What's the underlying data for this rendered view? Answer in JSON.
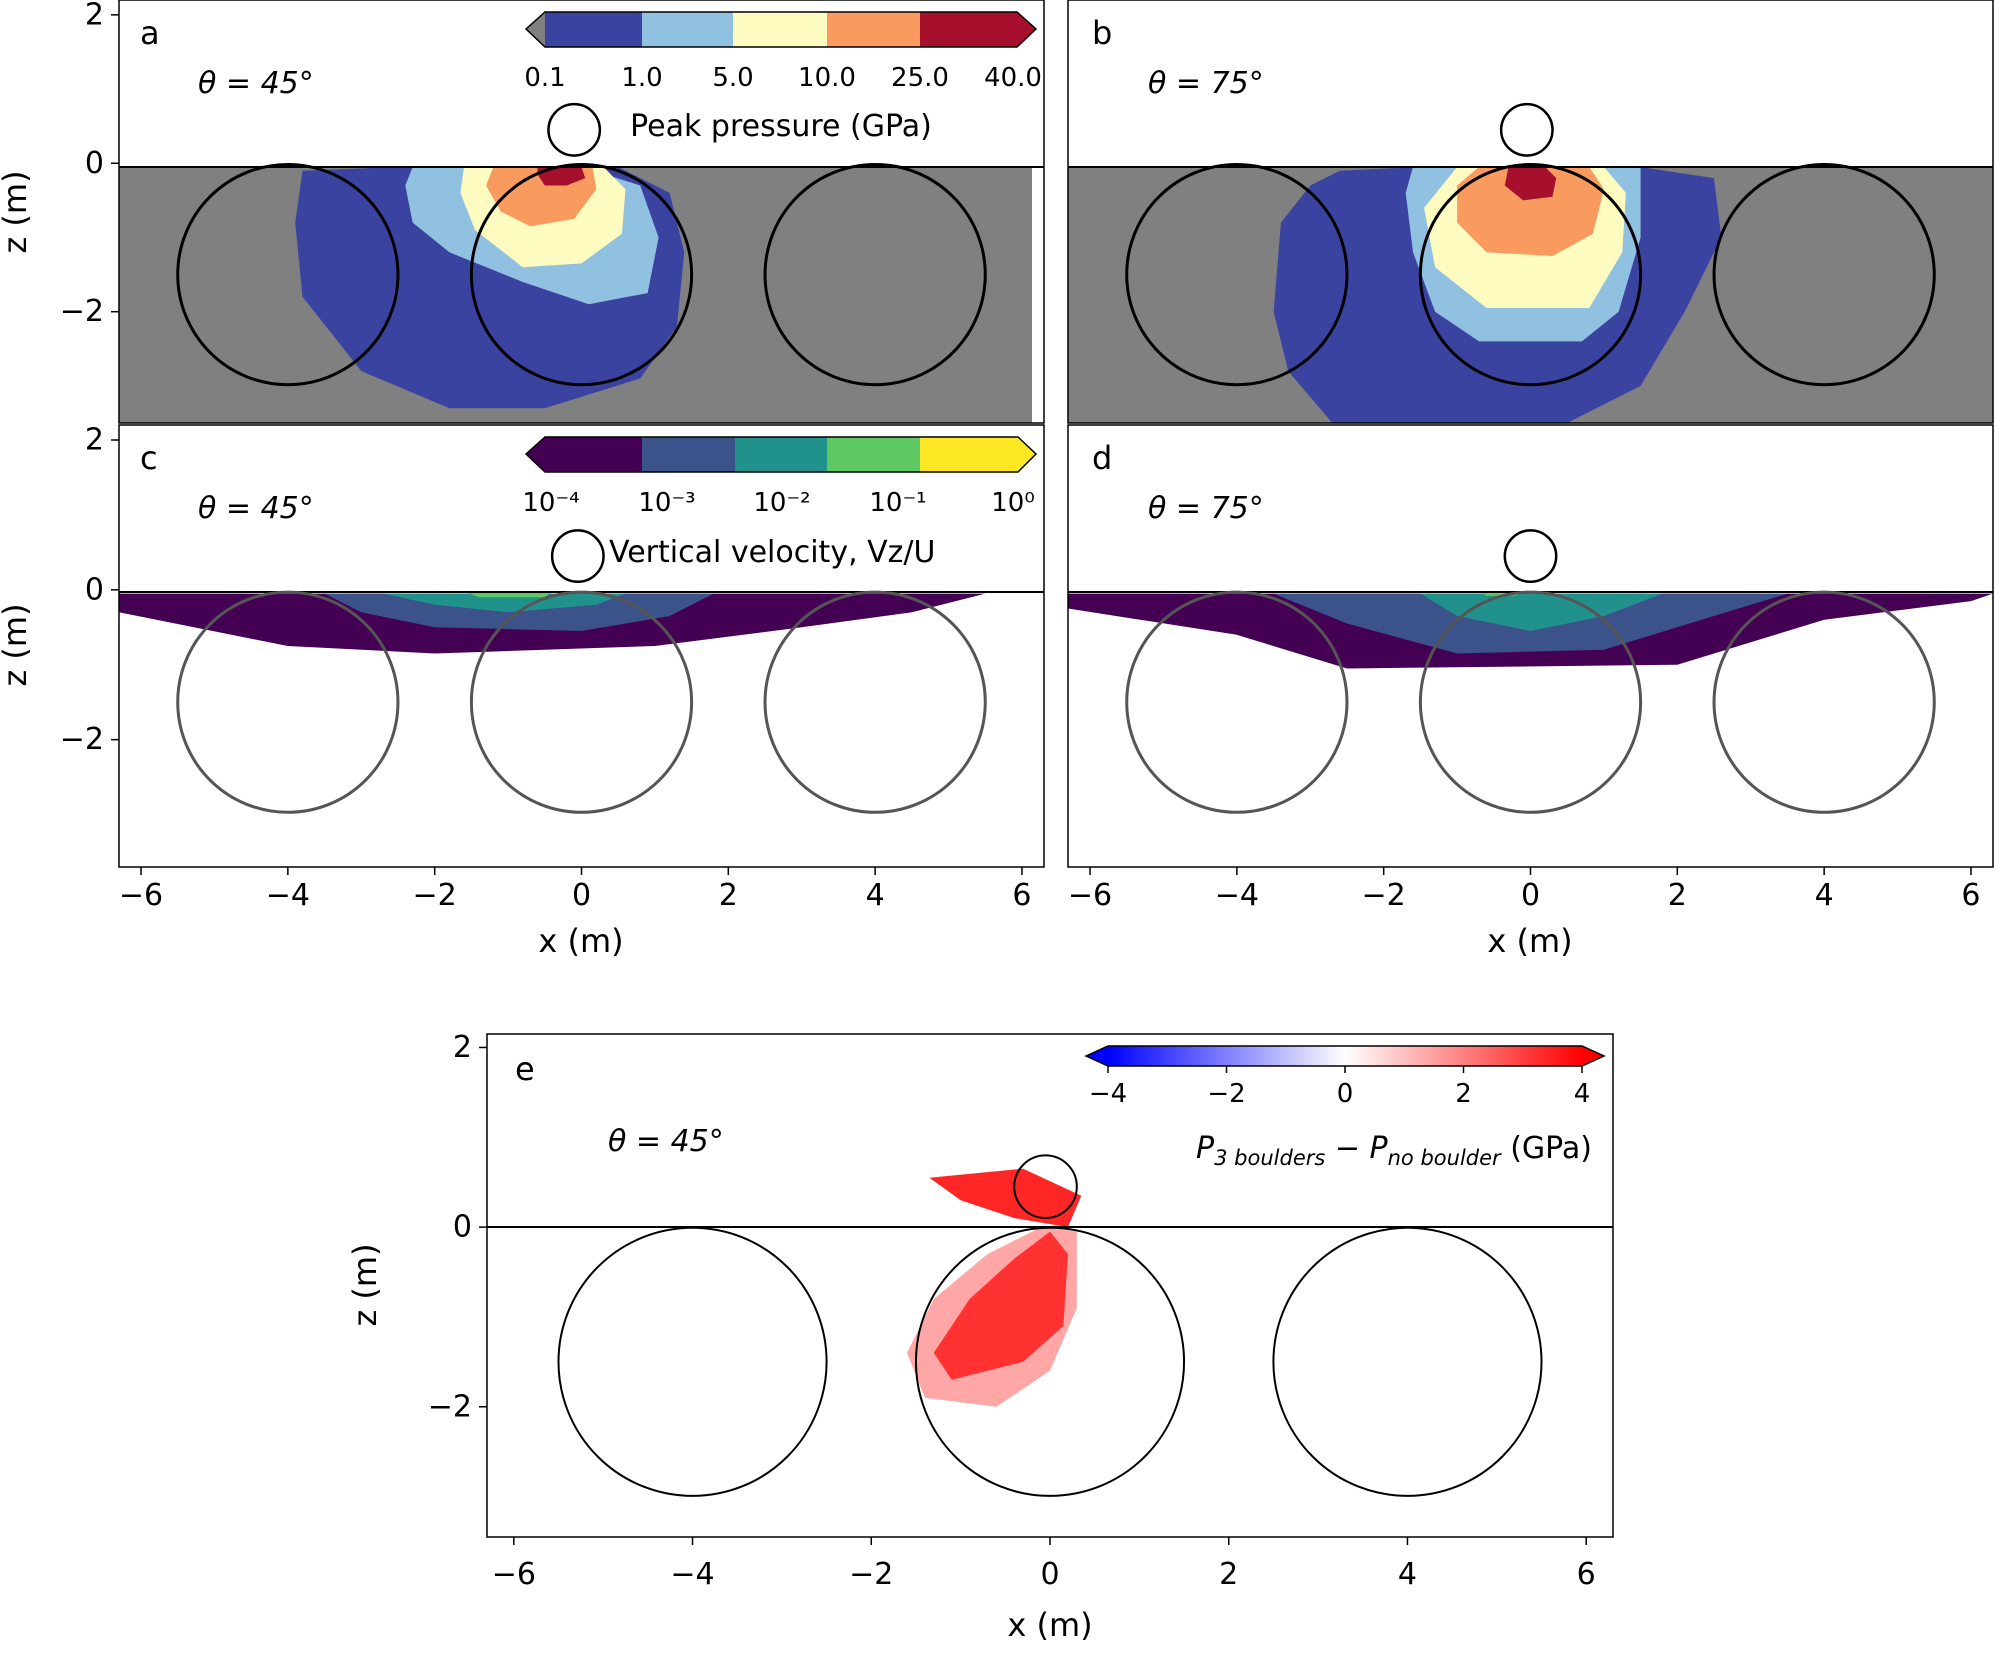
{
  "chart_data": [
    {
      "type": "heatmap",
      "panel_label": "a",
      "annotation": "θ = 45°",
      "xlabel": "",
      "ylabel": "z (m)",
      "xlim": [
        -6.3,
        6.3
      ],
      "ylim": [
        -3.5,
        2.2
      ],
      "xticks": [],
      "yticks": [
        "2",
        "0",
        "−2"
      ],
      "xtick_values": [],
      "ytick_values": [
        2,
        0,
        -2
      ],
      "impact_angle_deg": 45,
      "boulders": [
        {
          "x": -4,
          "z": -1.5,
          "r": 1.5
        },
        {
          "x": 0,
          "z": -1.5,
          "r": 1.5
        },
        {
          "x": 4,
          "z": -1.5,
          "r": 1.5
        }
      ],
      "projectile": {
        "x": -0.1,
        "z": 0.45,
        "r": 0.35
      },
      "background_color": "#808080",
      "contours": [
        {
          "level": "0.1",
          "points": [
            [
              -3.8,
              -0.1
            ],
            [
              -2.5,
              -0.05
            ],
            [
              -1,
              -0.05
            ],
            [
              0.5,
              -0.05
            ],
            [
              1.2,
              -0.4
            ],
            [
              1.4,
              -1.2
            ],
            [
              1.3,
              -2.2
            ],
            [
              0.8,
              -2.9
            ],
            [
              -0.5,
              -3.3
            ],
            [
              -1.8,
              -3.3
            ],
            [
              -3,
              -2.8
            ],
            [
              -3.8,
              -1.8
            ],
            [
              -3.9,
              -0.8
            ]
          ]
        },
        {
          "level": "1.0",
          "points": [
            [
              -2.3,
              -0.05
            ],
            [
              -1.2,
              -0.05
            ],
            [
              0,
              -0.05
            ],
            [
              0.8,
              -0.3
            ],
            [
              1.05,
              -1
            ],
            [
              0.9,
              -1.75
            ],
            [
              0.1,
              -1.9
            ],
            [
              -0.8,
              -1.6
            ],
            [
              -1.8,
              -1.2
            ],
            [
              -2.3,
              -0.8
            ],
            [
              -2.4,
              -0.3
            ]
          ]
        },
        {
          "level": "5.0",
          "points": [
            [
              -1.6,
              -0.05
            ],
            [
              -0.6,
              -0.05
            ],
            [
              0.3,
              -0.05
            ],
            [
              0.6,
              -0.35
            ],
            [
              0.55,
              -0.95
            ],
            [
              0,
              -1.35
            ],
            [
              -0.8,
              -1.4
            ],
            [
              -1.45,
              -0.9
            ],
            [
              -1.65,
              -0.4
            ]
          ]
        },
        {
          "level": "10.0",
          "points": [
            [
              -1.2,
              -0.05
            ],
            [
              -0.4,
              -0.05
            ],
            [
              0.15,
              -0.05
            ],
            [
              0.2,
              -0.35
            ],
            [
              -0.1,
              -0.75
            ],
            [
              -0.7,
              -0.85
            ],
            [
              -1.1,
              -0.65
            ],
            [
              -1.3,
              -0.3
            ]
          ]
        },
        {
          "level": "25.0",
          "points": [
            [
              -0.6,
              -0.05
            ],
            [
              0,
              -0.05
            ],
            [
              0.05,
              -0.2
            ],
            [
              -0.2,
              -0.3
            ],
            [
              -0.5,
              -0.3
            ],
            [
              -0.6,
              -0.15
            ]
          ]
        }
      ],
      "colorbar": {
        "label": "Peak pressure (GPa)",
        "tick_labels": [
          "0.1",
          "1.0",
          "5.0",
          "10.0",
          "25.0",
          "40.0"
        ],
        "bin_colors": [
          "#3a44a0",
          "#91c1e0",
          "#fdfbbf",
          "#f99a5e",
          "#a6102c"
        ],
        "under_color": "#808080",
        "over_color": "#a6102c"
      }
    },
    {
      "type": "heatmap",
      "panel_label": "b",
      "annotation": "θ = 75°",
      "xlabel": "",
      "ylabel": "",
      "xlim": [
        -6.3,
        6.3
      ],
      "ylim": [
        -3.5,
        2.2
      ],
      "xticks": [],
      "yticks": [],
      "xtick_values": [],
      "ytick_values": [],
      "impact_angle_deg": 75,
      "boulders": [
        {
          "x": -4,
          "z": -1.5,
          "r": 1.5
        },
        {
          "x": 0,
          "z": -1.5,
          "r": 1.5
        },
        {
          "x": 4,
          "z": -1.5,
          "r": 1.5
        }
      ],
      "projectile": {
        "x": -0.05,
        "z": 0.45,
        "r": 0.35
      },
      "background_color": "#808080",
      "contours": [
        {
          "level": "0.1",
          "points": [
            [
              -2.6,
              -0.1
            ],
            [
              -1.5,
              -0.05
            ],
            [
              0,
              -0.05
            ],
            [
              1.5,
              -0.05
            ],
            [
              2.5,
              -0.2
            ],
            [
              2.6,
              -1
            ],
            [
              2.1,
              -2
            ],
            [
              1.5,
              -3
            ],
            [
              0.5,
              -3.5
            ],
            [
              -2.7,
              -3.5
            ],
            [
              -3.3,
              -2.8
            ],
            [
              -3.5,
              -2
            ],
            [
              -3.4,
              -0.8
            ],
            [
              -3,
              -0.3
            ]
          ]
        },
        {
          "level": "1.0",
          "points": [
            [
              -1.6,
              -0.05
            ],
            [
              -0.5,
              -0.05
            ],
            [
              0.5,
              -0.05
            ],
            [
              1.5,
              -0.05
            ],
            [
              1.5,
              -1
            ],
            [
              1.2,
              -2
            ],
            [
              0.7,
              -2.4
            ],
            [
              -0.7,
              -2.4
            ],
            [
              -1.3,
              -2
            ],
            [
              -1.6,
              -1.2
            ],
            [
              -1.7,
              -0.4
            ]
          ]
        },
        {
          "level": "5.0",
          "points": [
            [
              -1,
              -0.05
            ],
            [
              0,
              -0.05
            ],
            [
              1,
              -0.05
            ],
            [
              1.3,
              -0.4
            ],
            [
              1.25,
              -1.2
            ],
            [
              0.8,
              -1.95
            ],
            [
              -0.6,
              -1.95
            ],
            [
              -1.3,
              -1.4
            ],
            [
              -1.45,
              -0.6
            ]
          ]
        },
        {
          "level": "10.0",
          "points": [
            [
              -0.7,
              -0.05
            ],
            [
              0.1,
              -0.05
            ],
            [
              0.8,
              -0.05
            ],
            [
              1,
              -0.35
            ],
            [
              0.85,
              -0.95
            ],
            [
              0.3,
              -1.25
            ],
            [
              -0.6,
              -1.2
            ],
            [
              -1,
              -0.8
            ],
            [
              -1,
              -0.3
            ]
          ]
        },
        {
          "level": "25.0",
          "points": [
            [
              -0.3,
              -0.05
            ],
            [
              0.2,
              -0.05
            ],
            [
              0.35,
              -0.2
            ],
            [
              0.3,
              -0.45
            ],
            [
              -0.1,
              -0.5
            ],
            [
              -0.35,
              -0.3
            ]
          ]
        }
      ],
      "colorbar": null
    },
    {
      "type": "heatmap",
      "panel_label": "c",
      "annotation": "θ = 45°",
      "xlabel": "x (m)",
      "ylabel": "z (m)",
      "xlim": [
        -6.3,
        6.3
      ],
      "ylim": [
        -3.7,
        2.2
      ],
      "xticks": [
        "−6",
        "−4",
        "−2",
        "0",
        "2",
        "4",
        "6"
      ],
      "yticks": [
        "2",
        "0",
        "−2"
      ],
      "xtick_values": [
        -6,
        -4,
        -2,
        0,
        2,
        4,
        6
      ],
      "ytick_values": [
        2,
        0,
        -2
      ],
      "impact_angle_deg": 45,
      "boulders": [
        {
          "x": -4,
          "z": -1.5,
          "r": 1.5
        },
        {
          "x": 0,
          "z": -1.5,
          "r": 1.5
        },
        {
          "x": 4,
          "z": -1.5,
          "r": 1.5
        }
      ],
      "projectile": {
        "x": -0.05,
        "z": 0.45,
        "r": 0.35
      },
      "background_color": "#ffffff",
      "contours": [
        {
          "level": "0.001",
          "points": [
            [
              -6.3,
              -0.05
            ],
            [
              5.5,
              -0.05
            ],
            [
              4.5,
              -0.3
            ],
            [
              3,
              -0.5
            ],
            [
              1,
              -0.75
            ],
            [
              -2,
              -0.85
            ],
            [
              -4,
              -0.75
            ],
            [
              -6.3,
              -0.3
            ]
          ]
        },
        {
          "level": "0.01",
          "points": [
            [
              -3.5,
              -0.05
            ],
            [
              1.8,
              -0.05
            ],
            [
              1.2,
              -0.35
            ],
            [
              0,
              -0.55
            ],
            [
              -2,
              -0.5
            ],
            [
              -3,
              -0.3
            ]
          ]
        },
        {
          "level": "0.1",
          "points": [
            [
              -2.7,
              -0.05
            ],
            [
              0.6,
              -0.05
            ],
            [
              0.2,
              -0.2
            ],
            [
              -1,
              -0.3
            ],
            [
              -2,
              -0.2
            ]
          ]
        },
        {
          "level": "1",
          "points": [
            [
              -1.6,
              -0.02
            ],
            [
              -0.4,
              -0.02
            ],
            [
              -0.5,
              -0.1
            ],
            [
              -1.4,
              -0.1
            ]
          ]
        }
      ],
      "colorbar": {
        "label": "Vertical velocity, Vz/U",
        "tick_labels": [
          "10⁻⁴",
          "10⁻³",
          "10⁻²",
          "10⁻¹",
          "10⁰"
        ],
        "bin_colors": [
          "#440154",
          "#3b528b",
          "#21918c",
          "#5ec962",
          "#fde725"
        ],
        "under_color": "#440154",
        "over_color": "#fde725"
      }
    },
    {
      "type": "heatmap",
      "panel_label": "d",
      "annotation": "θ = 75°",
      "xlabel": "x (m)",
      "ylabel": "",
      "xlim": [
        -6.3,
        6.3
      ],
      "ylim": [
        -3.7,
        2.2
      ],
      "xticks": [
        "−6",
        "−4",
        "−2",
        "0",
        "2",
        "4",
        "6"
      ],
      "yticks": [],
      "xtick_values": [
        -6,
        -4,
        -2,
        0,
        2,
        4,
        6
      ],
      "ytick_values": [],
      "impact_angle_deg": 75,
      "boulders": [
        {
          "x": -4,
          "z": -1.5,
          "r": 1.5
        },
        {
          "x": 0,
          "z": -1.5,
          "r": 1.5
        },
        {
          "x": 4,
          "z": -1.5,
          "r": 1.5
        }
      ],
      "projectile": {
        "x": 0,
        "z": 0.45,
        "r": 0.35
      },
      "background_color": "#ffffff",
      "contours": [
        {
          "level": "0.001",
          "points": [
            [
              -6.3,
              -0.05
            ],
            [
              6.3,
              -0.05
            ],
            [
              6,
              -0.15
            ],
            [
              4,
              -0.4
            ],
            [
              2,
              -1
            ],
            [
              -2.5,
              -1.05
            ],
            [
              -4,
              -0.6
            ],
            [
              -6.3,
              -0.25
            ]
          ]
        },
        {
          "level": "0.01",
          "points": [
            [
              -3.5,
              -0.05
            ],
            [
              3.5,
              -0.05
            ],
            [
              2.5,
              -0.35
            ],
            [
              1,
              -0.8
            ],
            [
              -1,
              -0.85
            ],
            [
              -2.5,
              -0.45
            ]
          ]
        },
        {
          "level": "0.1",
          "points": [
            [
              -1.5,
              -0.05
            ],
            [
              1.8,
              -0.05
            ],
            [
              1,
              -0.35
            ],
            [
              0,
              -0.55
            ],
            [
              -1,
              -0.35
            ]
          ]
        },
        {
          "level": "1",
          "points": [
            [
              -0.7,
              -0.02
            ],
            [
              -0.1,
              -0.02
            ],
            [
              -0.2,
              -0.08
            ],
            [
              -0.6,
              -0.08
            ]
          ]
        }
      ],
      "colorbar": null
    },
    {
      "type": "heatmap",
      "panel_label": "e",
      "annotation": "θ = 45°",
      "xlabel": "x (m)",
      "ylabel": "z (m)",
      "xlim": [
        -6.3,
        6.3
      ],
      "ylim": [
        -3.45,
        2.15
      ],
      "xticks": [
        "−6",
        "−4",
        "−2",
        "0",
        "2",
        "4",
        "6"
      ],
      "yticks": [
        "2",
        "0",
        "−2"
      ],
      "xtick_values": [
        -6,
        -4,
        -2,
        0,
        2,
        4,
        6
      ],
      "ytick_values": [
        2,
        0,
        -2
      ],
      "impact_angle_deg": 45,
      "boulders": [
        {
          "x": -4,
          "z": -1.5,
          "r": 1.5
        },
        {
          "x": 0,
          "z": -1.5,
          "r": 1.5
        },
        {
          "x": 4,
          "z": -1.5,
          "r": 1.5
        }
      ],
      "projectile": {
        "x": -0.05,
        "z": 0.45,
        "r": 0.35
      },
      "background_color": "#ffffff",
      "contours": [
        {
          "level": "1",
          "points": [
            [
              -1.6,
              -1.4
            ],
            [
              -1.3,
              -0.8
            ],
            [
              -0.7,
              -0.3
            ],
            [
              -0.1,
              0
            ],
            [
              0.3,
              -0.05
            ],
            [
              0.3,
              -0.9
            ],
            [
              0,
              -1.6
            ],
            [
              -0.6,
              -2
            ],
            [
              -1.4,
              -1.9
            ]
          ]
        },
        {
          "level": "3",
          "points": [
            [
              -1.3,
              -1.4
            ],
            [
              -0.9,
              -0.8
            ],
            [
              -0.4,
              -0.35
            ],
            [
              0,
              -0.05
            ],
            [
              0.2,
              -0.3
            ],
            [
              0.15,
              -1.1
            ],
            [
              -0.3,
              -1.5
            ],
            [
              -1.1,
              -1.7
            ]
          ]
        },
        {
          "level": "4",
          "points": [
            [
              -1.35,
              0.55
            ],
            [
              -0.3,
              0.65
            ],
            [
              0.35,
              0.35
            ],
            [
              0.2,
              0
            ],
            [
              -0.4,
              0.1
            ],
            [
              -1,
              0.3
            ]
          ]
        }
      ],
      "colorbar": {
        "label": "P3 boulders − Pno boulder (GPa)",
        "label_parts": {
          "p1": "P",
          "sub1": "3 boulders",
          "mid": " − ",
          "p2": "P",
          "sub2": "no boulder",
          "unit": " (GPa)"
        },
        "tick_labels": [
          "−4",
          "−2",
          "0",
          "2",
          "4"
        ],
        "tick_values": [
          -4,
          -2,
          0,
          2,
          4
        ],
        "min_color": "#0000ff",
        "mid_color": "#ffffff",
        "max_color": "#ff0000"
      }
    }
  ]
}
